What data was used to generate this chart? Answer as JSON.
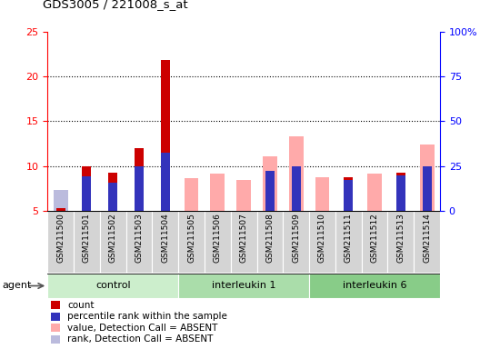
{
  "title": "GDS3005 / 221008_s_at",
  "samples": [
    "GSM211500",
    "GSM211501",
    "GSM211502",
    "GSM211503",
    "GSM211504",
    "GSM211505",
    "GSM211506",
    "GSM211507",
    "GSM211508",
    "GSM211509",
    "GSM211510",
    "GSM211511",
    "GSM211512",
    "GSM211513",
    "GSM211514"
  ],
  "red_values": [
    5.3,
    10.0,
    9.3,
    12.0,
    21.8,
    null,
    null,
    null,
    null,
    null,
    null,
    8.8,
    null,
    9.3,
    null
  ],
  "blue_values": [
    null,
    8.9,
    8.2,
    10.0,
    11.5,
    null,
    null,
    null,
    9.5,
    10.0,
    null,
    8.5,
    null,
    9.0,
    10.0
  ],
  "pink_values": [
    5.3,
    null,
    null,
    null,
    null,
    8.7,
    9.2,
    8.5,
    11.1,
    13.3,
    8.8,
    null,
    9.2,
    null,
    12.4
  ],
  "lavender_values": [
    7.4,
    null,
    null,
    null,
    null,
    null,
    null,
    null,
    null,
    null,
    null,
    null,
    null,
    null,
    null
  ],
  "ylim_left": [
    5,
    25
  ],
  "ylim_right": [
    0,
    100
  ],
  "yticks_left": [
    5,
    10,
    15,
    20,
    25
  ],
  "yticks_right": [
    0,
    25,
    50,
    75,
    100
  ],
  "yticklabels_right": [
    "0",
    "25",
    "50",
    "75",
    "100%"
  ],
  "red_color": "#cc0000",
  "blue_color": "#3333bb",
  "pink_color": "#ffaaaa",
  "lavender_color": "#bbbbdd",
  "group_colors": [
    "#cceecc",
    "#aaddaa",
    "#88cc88"
  ],
  "group_labels": [
    "control",
    "interleukin 1",
    "interleukin 6"
  ],
  "group_ranges": [
    [
      0,
      5
    ],
    [
      5,
      10
    ],
    [
      10,
      15
    ]
  ],
  "legend_items": [
    {
      "color": "#cc0000",
      "label": "count"
    },
    {
      "color": "#3333bb",
      "label": "percentile rank within the sample"
    },
    {
      "color": "#ffaaaa",
      "label": "value, Detection Call = ABSENT"
    },
    {
      "color": "#bbbbdd",
      "label": "rank, Detection Call = ABSENT"
    }
  ]
}
